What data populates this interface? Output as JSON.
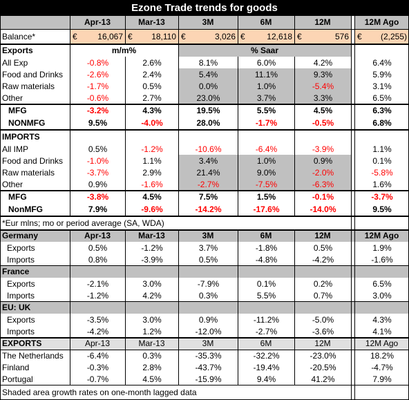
{
  "title": "Ezone Trade trends for goods",
  "header": [
    "Apr-13",
    "Mar-13",
    "3M",
    "6M",
    "12M",
    "12M Ago"
  ],
  "balance": {
    "label": "Balance*",
    "currency": "€",
    "values": [
      "16,067",
      "18,110",
      "3,026",
      "12,618",
      "576",
      "(2,255)"
    ]
  },
  "exports": {
    "label": "Exports",
    "mm": "m/m%",
    "saar": "% Saar",
    "negatives_red": true,
    "rows": [
      {
        "label": "All Exp",
        "values": [
          "-0.8%",
          "2.6%",
          "8.1%",
          "6.0%",
          "4.2%",
          "6.4%"
        ]
      },
      {
        "label": "Food and Drinks",
        "values": [
          "-2.6%",
          "2.4%",
          "5.4%",
          "11.1%",
          "9.3%",
          "5.9%"
        ]
      },
      {
        "label": "Raw materials",
        "values": [
          "-1.7%",
          "0.5%",
          "0.0%",
          "1.0%",
          "-5.4%",
          "3.1%"
        ]
      },
      {
        "label": "Other",
        "values": [
          "-0.6%",
          "2.7%",
          "23.0%",
          "3.7%",
          "3.3%",
          "6.5%"
        ]
      }
    ],
    "sub_rows": [
      {
        "label": "MFG",
        "values": [
          "-3.2%",
          "4.3%",
          "19.5%",
          "5.5%",
          "4.5%",
          "6.3%"
        ]
      },
      {
        "label": "NONMFG",
        "values": [
          "9.5%",
          "-4.0%",
          "28.0%",
          "-1.7%",
          "-0.5%",
          "6.8%"
        ]
      }
    ]
  },
  "imports": {
    "label": "IMPORTS",
    "negatives_red": true,
    "rows": [
      {
        "label": "All IMP",
        "values": [
          "0.5%",
          "-1.2%",
          "-10.6%",
          "-6.4%",
          "-3.9%",
          "1.1%"
        ]
      },
      {
        "label": "Food and Drinks",
        "values": [
          "-1.0%",
          "1.1%",
          "3.4%",
          "1.0%",
          "0.9%",
          "0.1%"
        ]
      },
      {
        "label": "Raw materials",
        "values": [
          "-3.7%",
          "2.9%",
          "21.4%",
          "9.0%",
          "-2.0%",
          "-5.8%"
        ]
      },
      {
        "label": "Other",
        "values": [
          "0.9%",
          "-1.6%",
          "-2.7%",
          "-7.5%",
          "-6.3%",
          "1.6%"
        ]
      }
    ],
    "sub_rows": [
      {
        "label": "MFG",
        "values": [
          "-3.8%",
          "4.5%",
          "7.5%",
          "1.5%",
          "-0.1%",
          "-3.7%"
        ]
      },
      {
        "label": "NonMFG",
        "values": [
          "7.9%",
          "-9.6%",
          "-14.2%",
          "-17.6%",
          "-14.0%",
          "9.5%"
        ]
      }
    ]
  },
  "note": "*Eur mlns; mo or period average (SA, WDA)",
  "countries": [
    {
      "name": "Germany",
      "header": [
        "Apr-13",
        "Mar-13",
        "3M",
        "6M",
        "12M",
        "12M Ago"
      ],
      "rows": [
        {
          "label": "Exports",
          "values": [
            "0.5%",
            "-1.2%",
            "3.7%",
            "-1.8%",
            "0.5%",
            "1.9%"
          ]
        },
        {
          "label": "Imports",
          "values": [
            "0.8%",
            "-3.9%",
            "0.5%",
            "-4.8%",
            "-4.2%",
            "-1.6%"
          ]
        }
      ]
    },
    {
      "name": "France",
      "rows": [
        {
          "label": "Exports",
          "values": [
            "-2.1%",
            "3.0%",
            "-7.9%",
            "0.1%",
            "0.2%",
            "6.5%"
          ]
        },
        {
          "label": "Imports",
          "values": [
            "-1.2%",
            "4.2%",
            "0.3%",
            "5.5%",
            "0.7%",
            "3.0%"
          ]
        }
      ]
    },
    {
      "name": "EU: UK",
      "rows": [
        {
          "label": "Exports",
          "values": [
            "-3.5%",
            "3.0%",
            "0.9%",
            "-11.2%",
            "-5.0%",
            "4.3%"
          ]
        },
        {
          "label": "Imports",
          "values": [
            "-4.2%",
            "1.2%",
            "-12.0%",
            "-2.7%",
            "-3.6%",
            "4.1%"
          ]
        }
      ]
    }
  ],
  "exports_by_country": {
    "label": "EXPORTS",
    "header": [
      "Apr-13",
      "Mar-13",
      "3M",
      "6M",
      "12M",
      "12M Ago"
    ],
    "rows": [
      {
        "label": "The Netherlands",
        "values": [
          "-6.4%",
          "0.3%",
          "-35.3%",
          "-32.2%",
          "-23.0%",
          "18.2%"
        ]
      },
      {
        "label": "Finland",
        "values": [
          "-0.3%",
          "2.8%",
          "-43.7%",
          "-19.4%",
          "-20.5%",
          "-4.7%"
        ]
      },
      {
        "label": "Portugal",
        "values": [
          "-0.7%",
          "4.5%",
          "-15.9%",
          "9.4%",
          "41.2%",
          "7.9%"
        ]
      }
    ]
  },
  "footnote": "Shaded area growth rates on one-month lagged data"
}
